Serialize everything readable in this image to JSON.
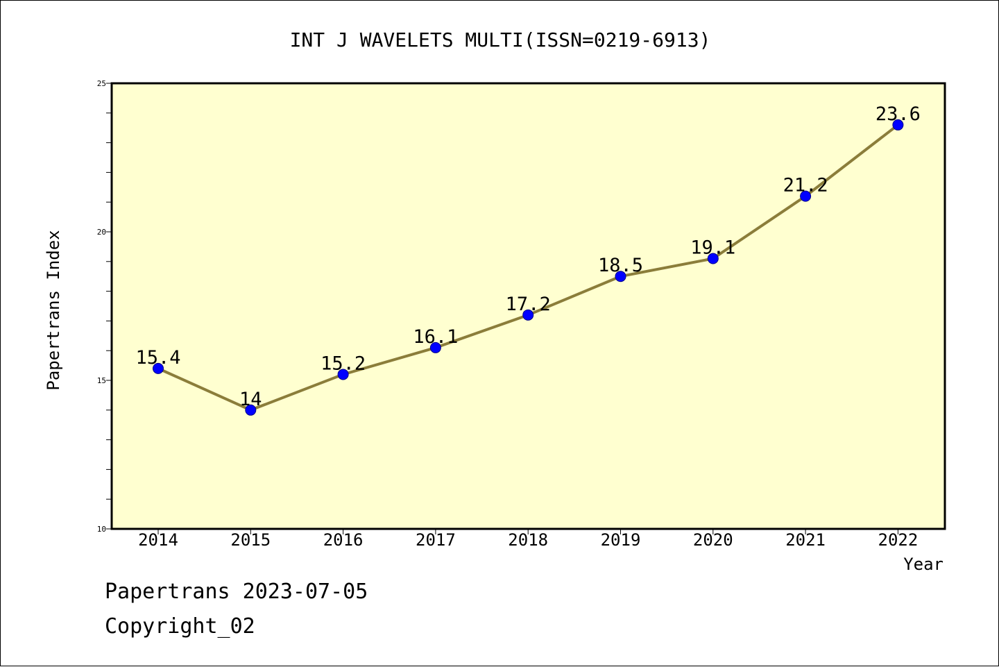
{
  "chart_data": {
    "type": "line",
    "title": "INT J WAVELETS MULTI(ISSN=0219-6913)",
    "xlabel": "Year",
    "ylabel": "Papertrans Index",
    "x": [
      "2014",
      "2015",
      "2016",
      "2017",
      "2018",
      "2019",
      "2020",
      "2021",
      "2022"
    ],
    "series": [
      {
        "values": [
          15.4,
          14,
          15.2,
          16.1,
          17.2,
          18.5,
          19.1,
          21.2,
          23.6
        ],
        "data_labels": [
          "15.4",
          "14",
          "15.2",
          "16.1",
          "17.2",
          "18.5",
          "19.1",
          "21.2",
          "23.6"
        ]
      }
    ],
    "ylim": [
      10,
      25
    ],
    "yticks": [
      "10",
      "15",
      "20",
      "25"
    ],
    "grid": false,
    "legend": "none",
    "colors": {
      "plot_background": "#FFFFD0",
      "line": "#8B7D3A",
      "marker": "#0000FF",
      "marker_edge": "#00008B"
    }
  },
  "footer": {
    "line1": "Papertrans 2023-07-05",
    "line2": "Copyright_02"
  }
}
